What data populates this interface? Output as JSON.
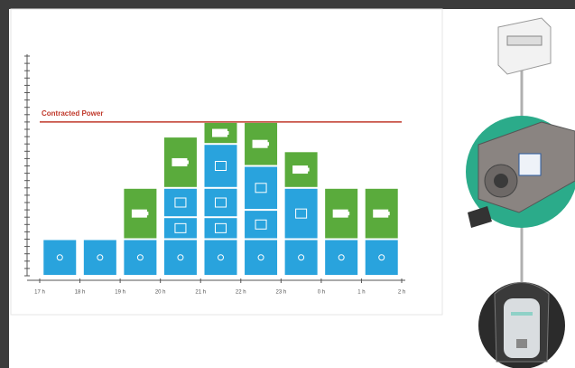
{
  "chart_data": {
    "type": "bar",
    "stacked": true,
    "annotation": {
      "label": "Contracted Power",
      "value": 21,
      "color": "#c0392b"
    },
    "hour_labels": [
      "17 h",
      "18 h",
      "19 h",
      "20 h",
      "21 h",
      "22 h",
      "23 h",
      "0 h",
      "1 h",
      "2 h"
    ],
    "series": [
      {
        "color": "#29a3dd",
        "values": [
          5,
          5,
          5,
          5,
          5,
          5,
          5,
          5,
          5
        ]
      },
      {
        "color": "#29a3dd",
        "values": [
          0,
          0,
          0,
          3,
          3,
          0,
          0,
          0,
          0
        ]
      },
      {
        "color": "#29a3dd",
        "values": [
          0,
          0,
          0,
          4,
          4,
          4,
          0,
          0,
          0
        ]
      },
      {
        "color": "#29a3dd",
        "values": [
          0,
          0,
          0,
          0,
          6,
          6,
          7,
          0,
          0
        ]
      },
      {
        "color": "#5aab3c",
        "values": [
          0,
          0,
          7,
          7,
          3,
          6,
          5,
          7,
          7
        ]
      }
    ],
    "ylim": [
      0,
      30
    ],
    "yticks": [
      0,
      1,
      2,
      3,
      4,
      5,
      6,
      7,
      8,
      9,
      10,
      11,
      12,
      13,
      14,
      15,
      16,
      17,
      18,
      19,
      20,
      21,
      22,
      23,
      24,
      25,
      26,
      27,
      28,
      29,
      30
    ]
  }
}
